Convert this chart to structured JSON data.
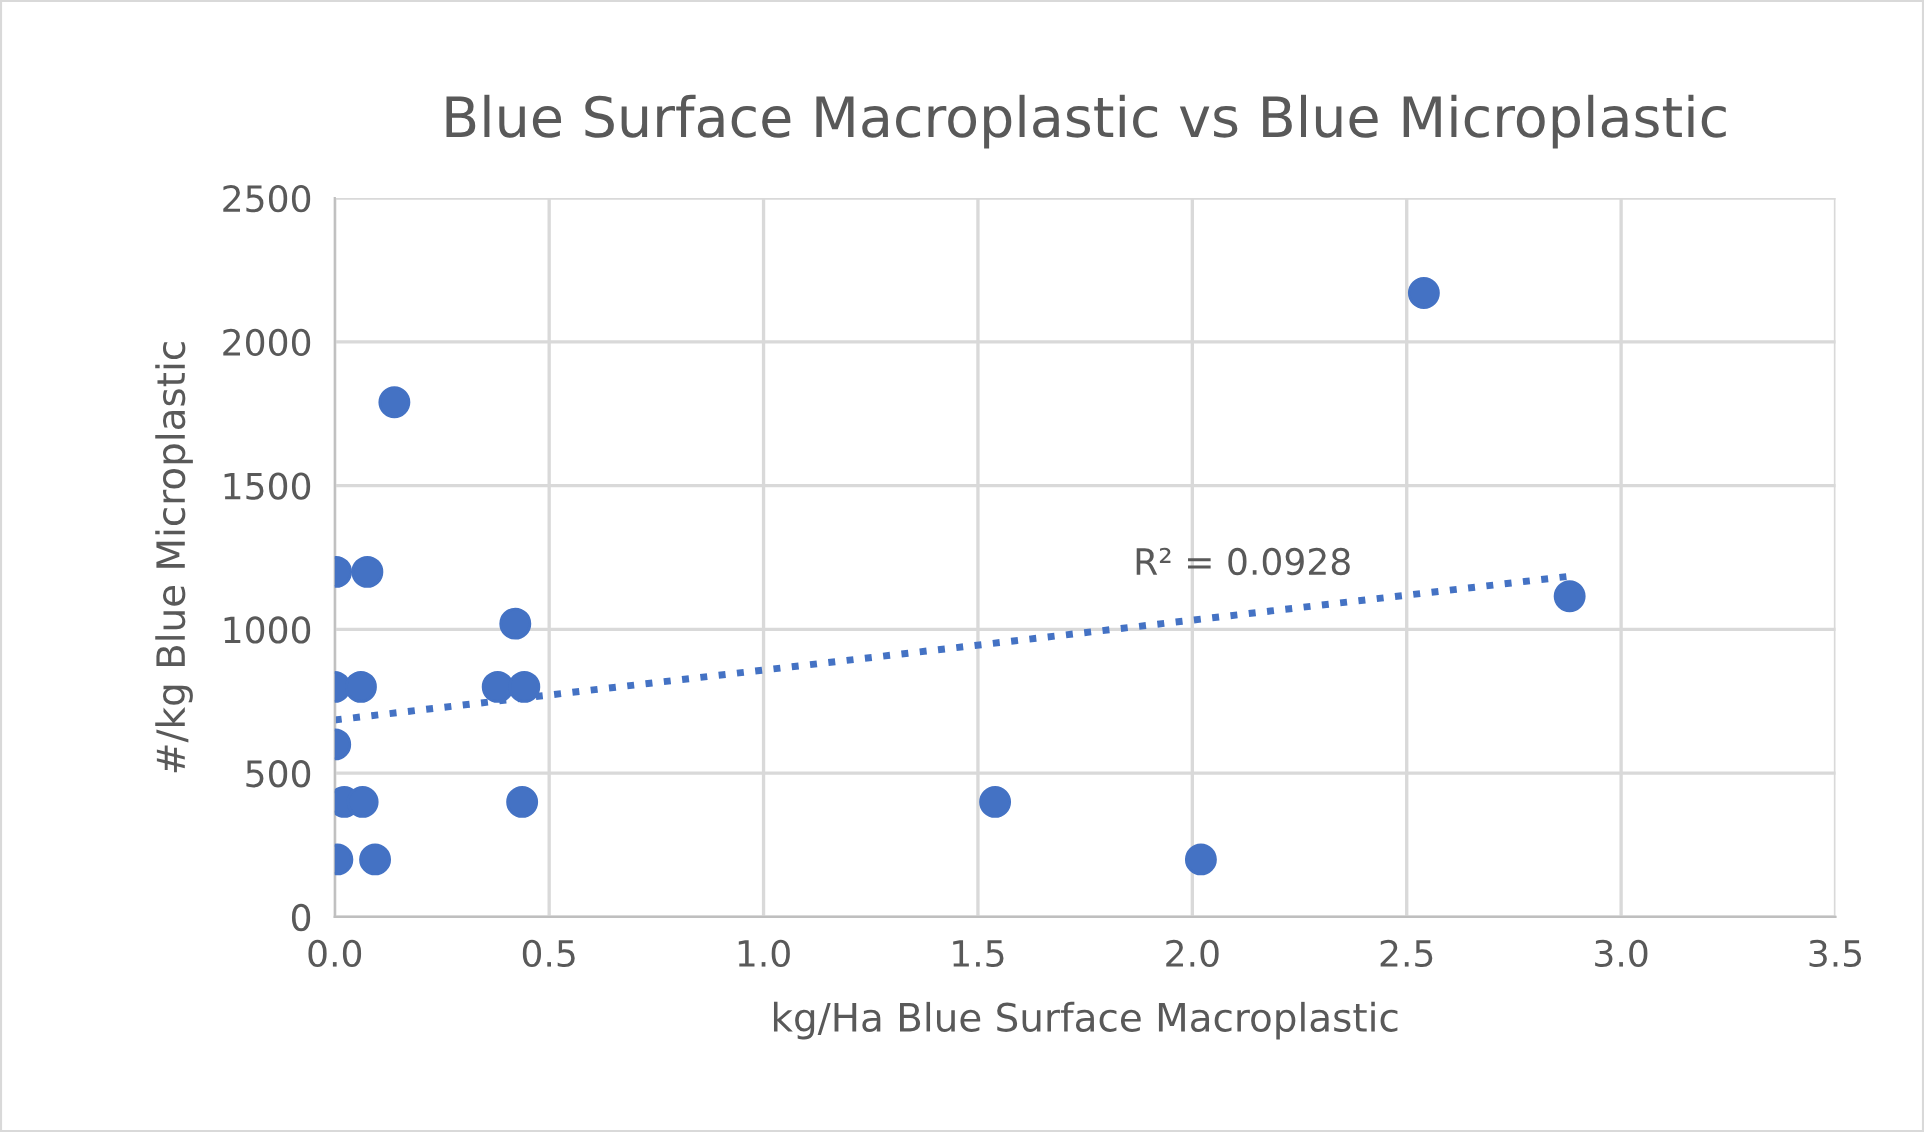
{
  "chart_data": {
    "type": "scatter",
    "title": "Blue Surface Macroplastic vs Blue Microplastic",
    "xlabel": "kg/Ha Blue Surface Macroplastic",
    "ylabel": "#/kg Blue Microplastic",
    "series": [
      {
        "color": "#4472c4",
        "x": [
          0.139,
          0.003,
          0.076,
          0.421,
          0.0,
          0.061,
          0.38,
          0.442,
          0.001,
          0.022,
          0.065,
          0.437,
          0.006,
          0.094,
          1.54,
          2.02,
          2.54,
          2.88
        ],
        "values": [
          1790,
          1200,
          1200,
          1020,
          800,
          800,
          800,
          800,
          600,
          400,
          400,
          400,
          200,
          200,
          400,
          200,
          2170,
          1115
        ],
        "marker": "circle"
      },
      {
        "type": "line",
        "color": "#4472c4",
        "x": [
          0.0,
          2.88
        ],
        "values": [
          685,
          1185
        ],
        "line_style": "dotted",
        "marker": "none"
      }
    ],
    "annotations": [
      "R² = 0.0928"
    ],
    "xlim": [
      0,
      3.5
    ],
    "xticks": [
      {
        "value": 0,
        "label": "0.0"
      },
      {
        "value": 0.5,
        "label": "0.5"
      },
      {
        "value": 1,
        "label": "1.0"
      },
      {
        "value": 1.5,
        "label": "1.5"
      },
      {
        "value": 2,
        "label": "2.0"
      },
      {
        "value": 2.5,
        "label": "2.5"
      },
      {
        "value": 3,
        "label": "3.0"
      },
      {
        "value": 3.5,
        "label": "3.5"
      }
    ],
    "ylim": [
      0,
      2500
    ],
    "yticks": [
      0,
      500,
      1000,
      1500,
      2000,
      2500
    ],
    "grid": true
  }
}
